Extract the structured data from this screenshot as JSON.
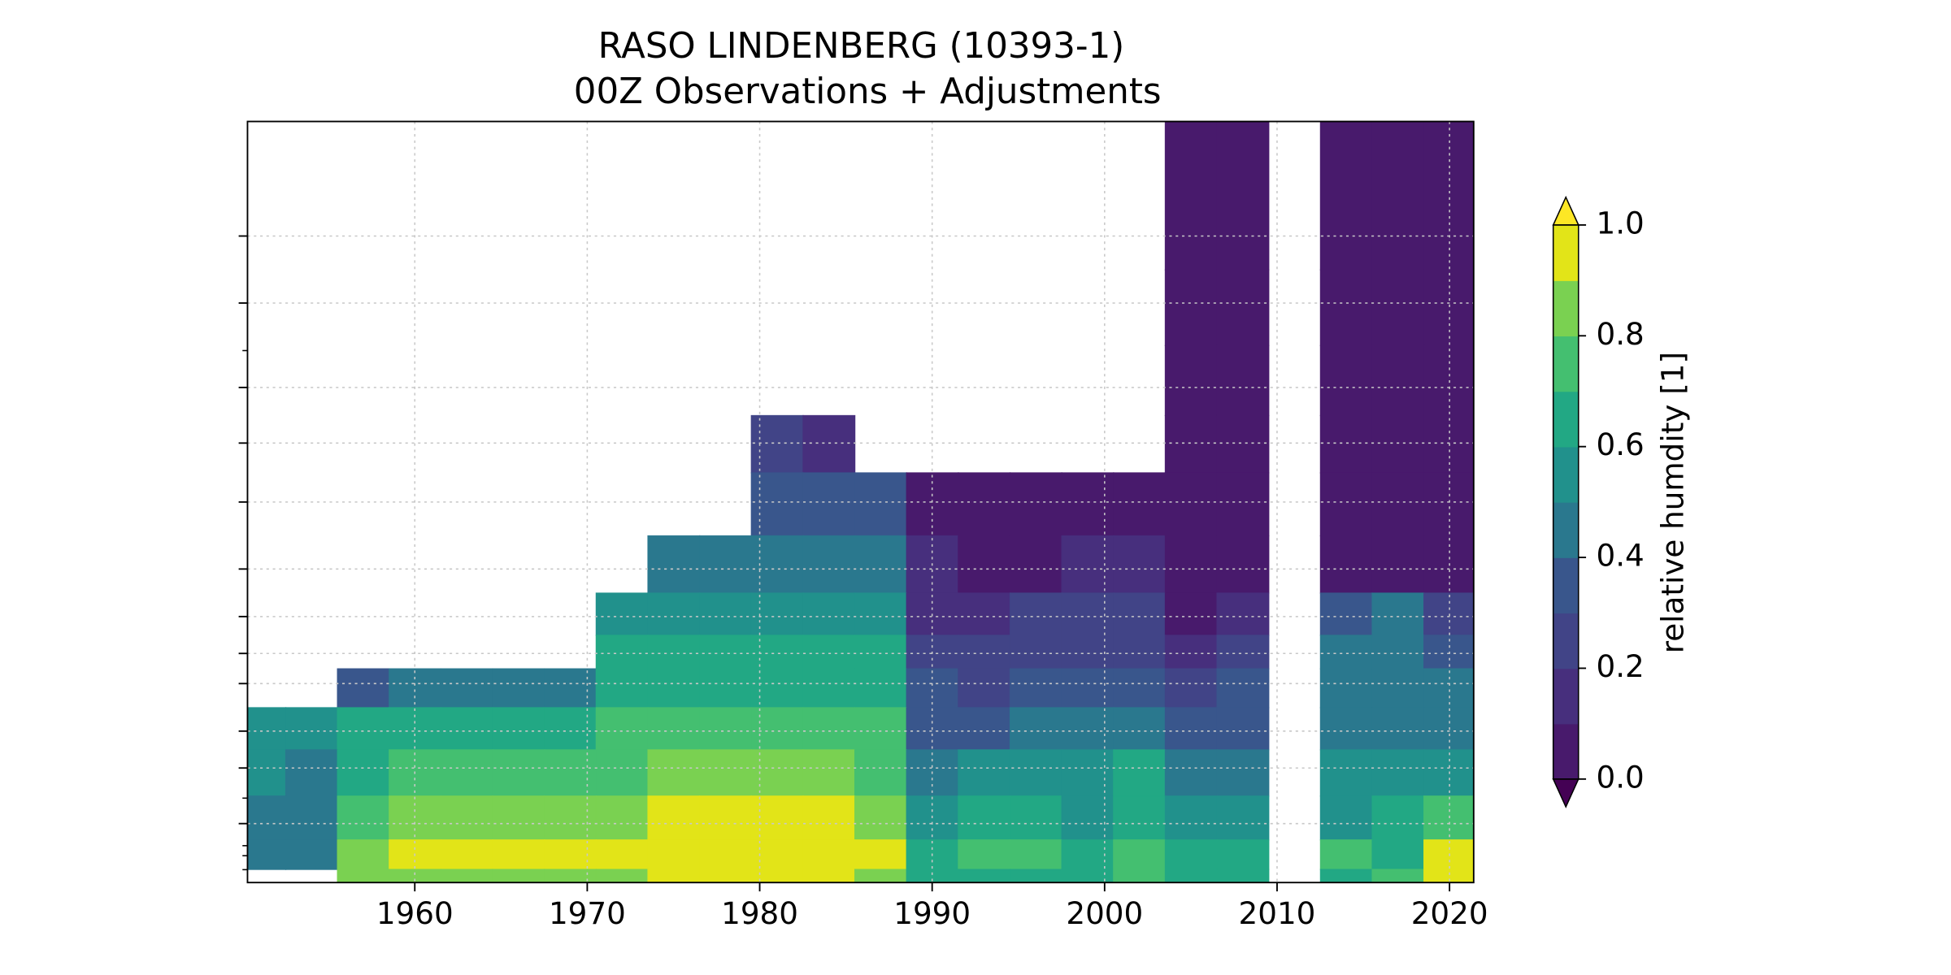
{
  "chart_data": {
    "type": "heatmap",
    "title": "RASO LINDENBERG (10393-1)",
    "subtitle": "00Z Observations + Adjustments",
    "x": [
      1951,
      1954,
      1957,
      1960,
      1963,
      1966,
      1969,
      1972,
      1975,
      1978,
      1981,
      1984,
      1987,
      1990,
      1993,
      1996,
      1999,
      2002,
      2005,
      2008,
      2011,
      2014,
      2017,
      2020
    ],
    "xlim": [
      1950.3,
      2021.4
    ],
    "xticks": [
      1960,
      1970,
      1980,
      1990,
      2000,
      2010,
      2020
    ],
    "levels": [
      20,
      30,
      50,
      70,
      100,
      150,
      200,
      250,
      300,
      400,
      500,
      700,
      850,
      1000
    ],
    "ylim": [
      10,
      1000
    ],
    "yscale": "log",
    "yinverted": true,
    "yticks": [
      20,
      30,
      50,
      70,
      100,
      150,
      200,
      250,
      300,
      400,
      500,
      700
    ],
    "yminorticks": [
      40,
      600,
      800,
      850,
      925
    ],
    "grid": true,
    "z": [
      [
        null,
        null,
        null,
        null,
        null,
        null,
        null,
        null,
        null,
        null,
        null,
        null,
        null,
        null,
        null,
        null,
        null,
        null,
        0.05,
        0.05,
        null,
        0.05,
        0.05,
        0.05
      ],
      [
        null,
        null,
        null,
        null,
        null,
        null,
        null,
        null,
        null,
        null,
        null,
        null,
        null,
        null,
        null,
        null,
        null,
        null,
        0.05,
        0.05,
        null,
        0.05,
        0.05,
        0.05
      ],
      [
        null,
        null,
        null,
        null,
        null,
        null,
        null,
        null,
        null,
        null,
        null,
        null,
        null,
        null,
        null,
        null,
        null,
        null,
        0.05,
        0.05,
        null,
        0.05,
        0.05,
        0.05
      ],
      [
        null,
        null,
        null,
        null,
        null,
        null,
        null,
        null,
        null,
        null,
        0.3,
        0.2,
        null,
        null,
        null,
        null,
        null,
        null,
        0.05,
        0.05,
        null,
        0.05,
        0.05,
        0.05
      ],
      [
        null,
        null,
        null,
        null,
        null,
        null,
        null,
        null,
        null,
        null,
        0.4,
        0.4,
        0.4,
        0.1,
        0.1,
        0.05,
        0.05,
        0.1,
        0.05,
        0.05,
        null,
        0.05,
        0.05,
        0.05
      ],
      [
        null,
        null,
        null,
        null,
        null,
        null,
        null,
        null,
        0.5,
        0.5,
        0.5,
        0.5,
        0.5,
        0.15,
        0.1,
        0.1,
        0.15,
        0.2,
        0.05,
        0.05,
        null,
        0.1,
        0.1,
        0.05
      ],
      [
        null,
        null,
        null,
        null,
        null,
        null,
        null,
        0.6,
        0.6,
        0.6,
        0.6,
        0.6,
        0.6,
        0.2,
        0.2,
        0.25,
        0.3,
        0.3,
        0.1,
        0.2,
        null,
        0.4,
        0.45,
        0.3
      ],
      [
        null,
        null,
        null,
        null,
        null,
        null,
        null,
        0.65,
        0.65,
        0.65,
        0.65,
        0.65,
        0.65,
        0.3,
        0.3,
        0.3,
        0.3,
        0.3,
        0.2,
        0.3,
        null,
        0.45,
        0.45,
        0.4
      ],
      [
        null,
        null,
        0.4,
        0.5,
        0.5,
        0.5,
        0.5,
        0.65,
        0.7,
        0.7,
        0.7,
        0.7,
        0.7,
        0.35,
        0.3,
        0.35,
        0.4,
        0.35,
        0.25,
        0.35,
        null,
        0.5,
        0.5,
        0.45
      ],
      [
        0.6,
        0.55,
        0.65,
        0.7,
        0.7,
        0.7,
        0.7,
        0.75,
        0.75,
        0.75,
        0.75,
        0.75,
        0.75,
        0.4,
        0.4,
        0.5,
        0.45,
        0.5,
        0.35,
        0.4,
        null,
        0.5,
        0.5,
        0.5
      ],
      [
        0.6,
        0.5,
        0.7,
        0.8,
        0.8,
        0.8,
        0.8,
        0.8,
        0.85,
        0.85,
        0.85,
        0.85,
        0.8,
        0.5,
        0.55,
        0.6,
        0.6,
        0.65,
        0.45,
        0.5,
        null,
        0.55,
        0.55,
        0.6
      ],
      [
        0.5,
        0.5,
        0.8,
        0.9,
        0.9,
        0.85,
        0.9,
        0.9,
        0.95,
        0.95,
        0.95,
        0.95,
        0.9,
        0.6,
        0.65,
        0.7,
        0.6,
        0.7,
        0.55,
        0.6,
        null,
        0.6,
        0.65,
        0.8
      ],
      [
        0.45,
        0.45,
        0.85,
        0.95,
        0.95,
        0.95,
        0.95,
        0.95,
        0.95,
        0.95,
        0.95,
        0.95,
        0.95,
        0.7,
        0.75,
        0.8,
        0.7,
        0.75,
        0.7,
        0.65,
        null,
        0.75,
        0.7,
        0.95
      ],
      [
        null,
        null,
        0.9,
        0.9,
        0.9,
        0.9,
        0.9,
        0.9,
        0.95,
        0.95,
        0.95,
        0.95,
        0.9,
        0.7,
        0.7,
        0.7,
        0.7,
        0.8,
        0.7,
        0.7,
        null,
        0.7,
        0.75,
        0.95
      ]
    ],
    "colorbar": {
      "label": "relative humdity [1]",
      "levels": [
        0,
        0.1,
        0.2,
        0.3,
        0.4,
        0.5,
        0.6,
        0.7,
        0.8,
        0.9,
        1
      ],
      "colors": [
        "#481a6c",
        "#472f7d",
        "#414487",
        "#39568c",
        "#2a788e",
        "#21918c",
        "#22a884",
        "#44bf70",
        "#7ad151",
        "#e2e418"
      ],
      "under_color": "#440154",
      "over_color": "#fde725",
      "ticks": [
        {
          "value": 0,
          "label": "0.0"
        },
        0.2,
        0.4,
        0.6,
        0.8,
        {
          "value": 1,
          "label": "1.0"
        }
      ]
    }
  }
}
